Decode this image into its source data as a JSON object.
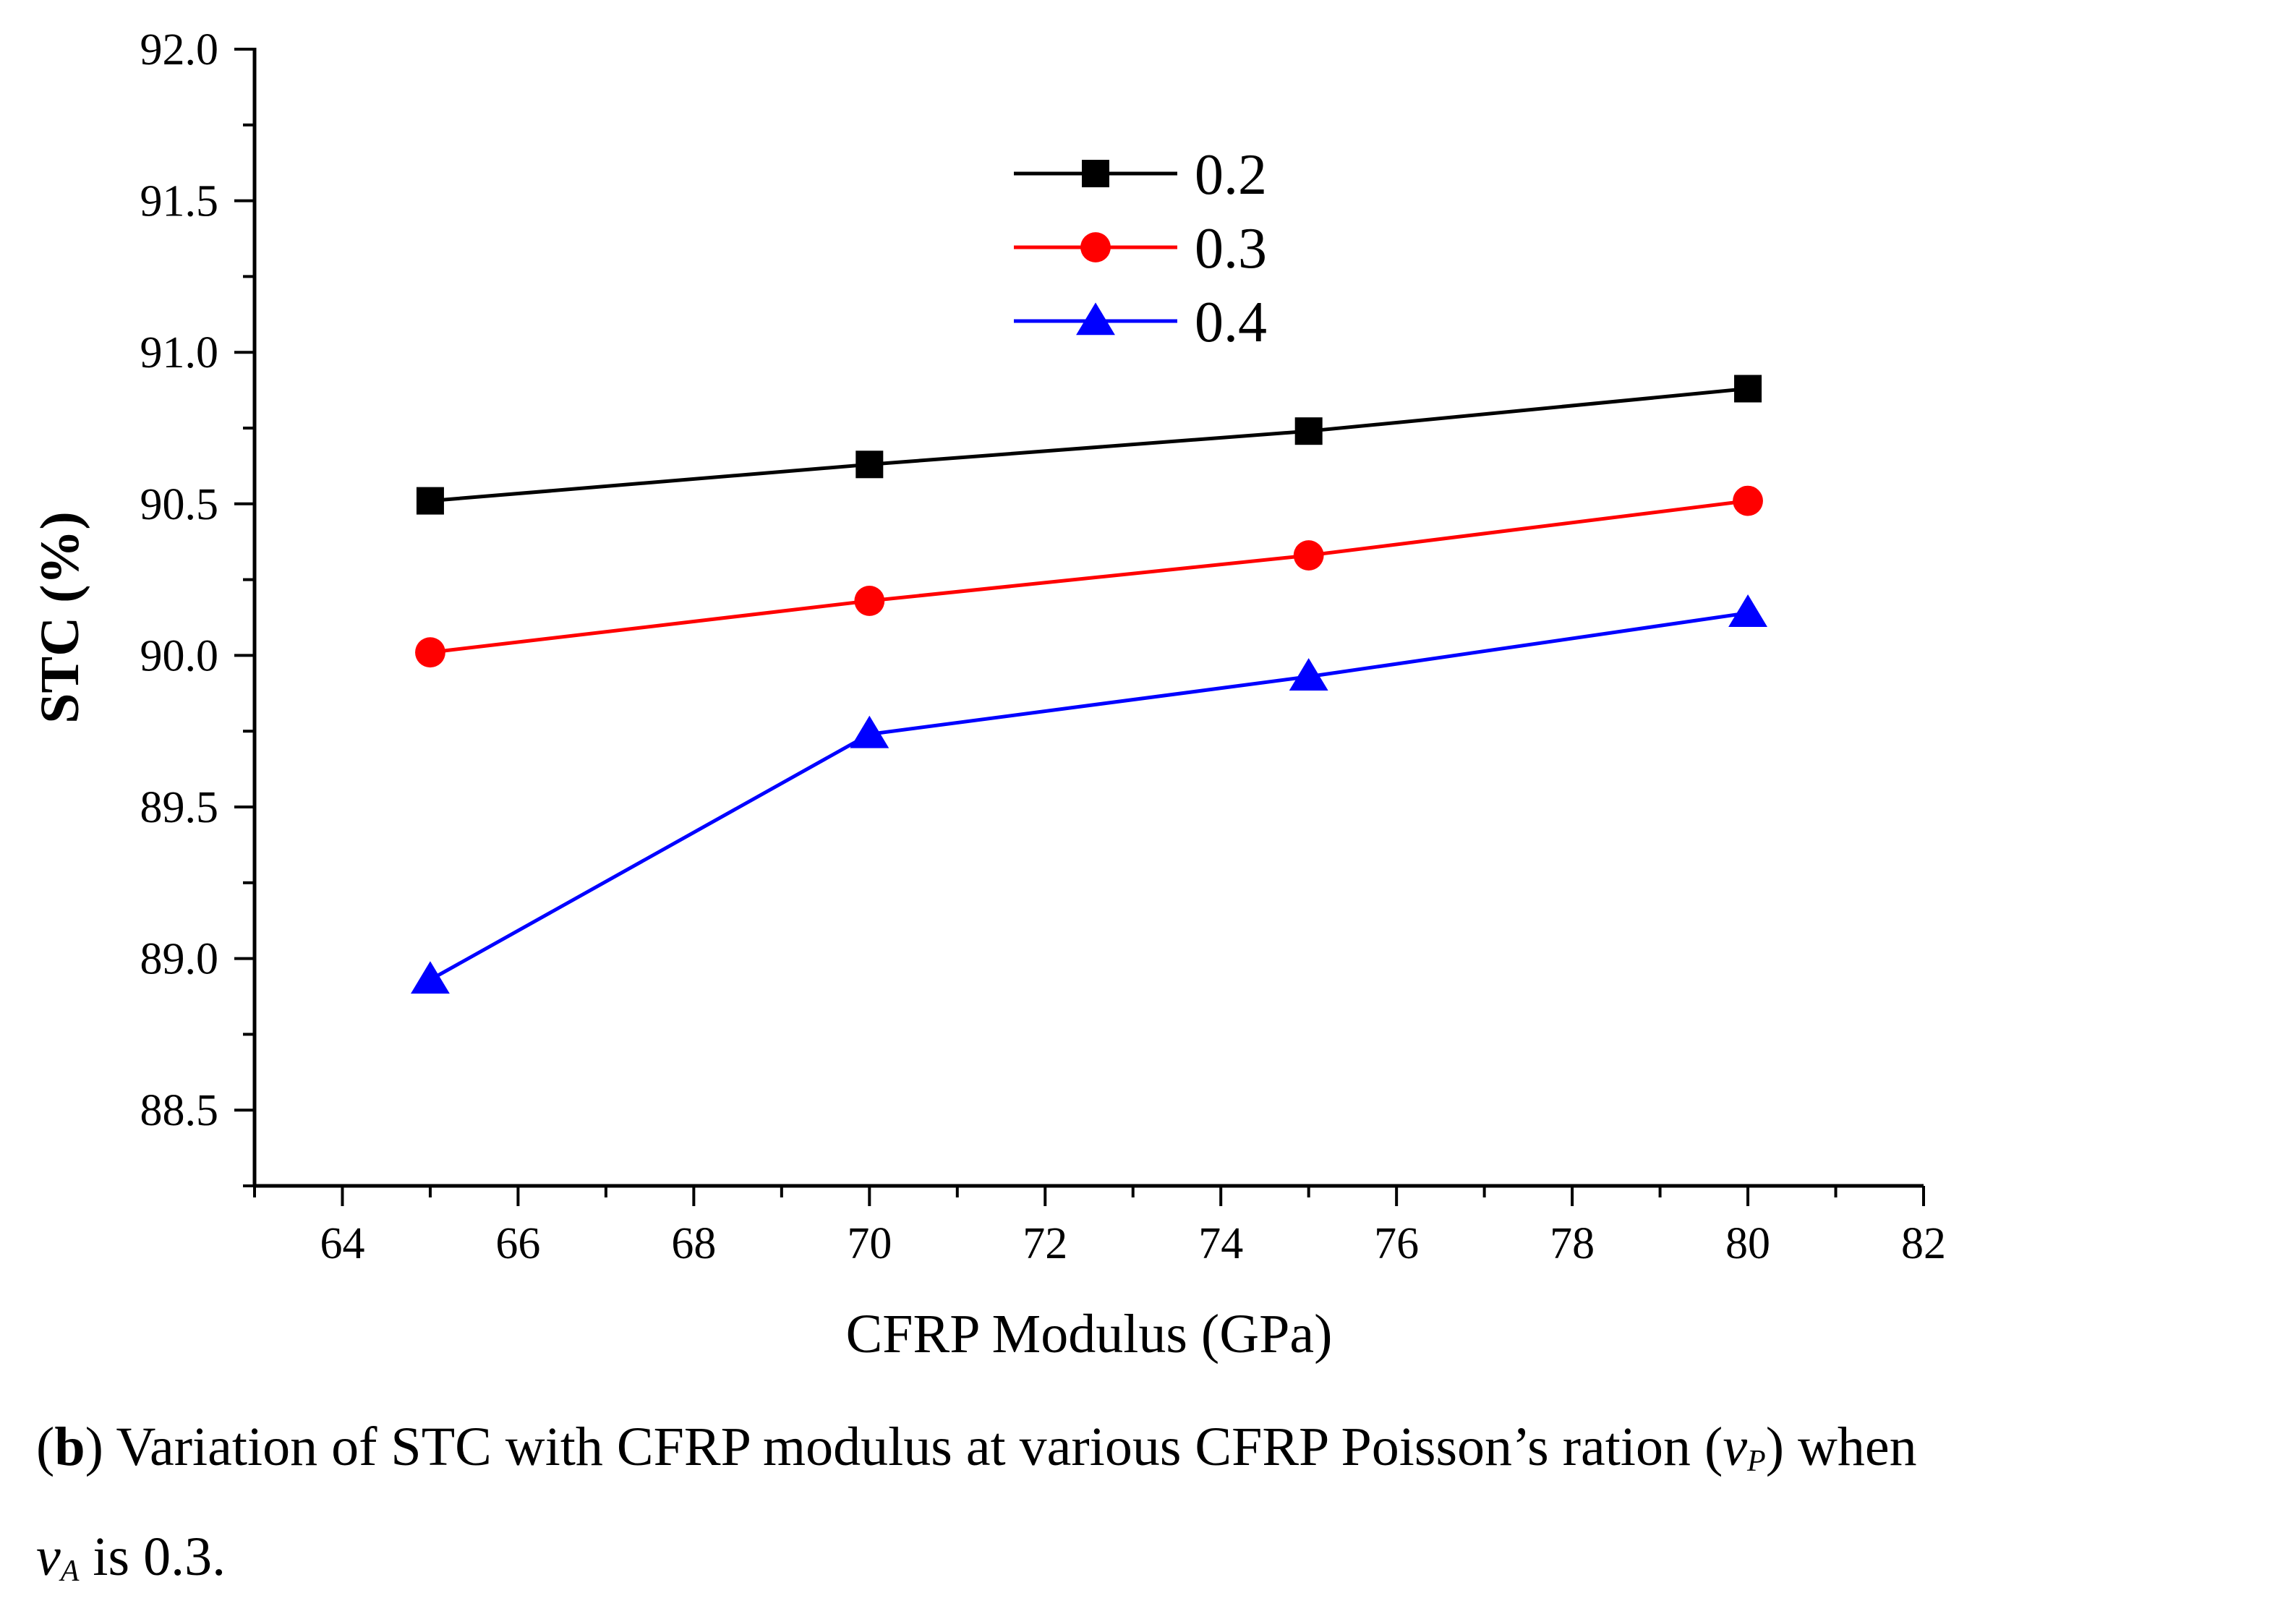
{
  "chart_data": {
    "type": "line",
    "x": [
      65,
      70,
      75,
      80
    ],
    "xlabel": "CFRP Modulus (GPa)",
    "ylabel": "STC (%)",
    "xlim": [
      63,
      82
    ],
    "ylim": [
      88.25,
      92.0
    ],
    "xticks": [
      64,
      66,
      68,
      70,
      72,
      74,
      76,
      78,
      80,
      82
    ],
    "xtick_labels": [
      "64",
      "66",
      "68",
      "70",
      "72",
      "74",
      "76",
      "78",
      "80",
      "82"
    ],
    "yticks": [
      88.5,
      89.0,
      89.5,
      90.0,
      90.5,
      91.0,
      91.5,
      92.0
    ],
    "ytick_labels": [
      "88.5",
      "89.0",
      "89.5",
      "90.0",
      "90.5",
      "91.0",
      "91.5",
      "92.0"
    ],
    "legend_position": "top-center",
    "series": [
      {
        "name": "0.2",
        "color": "#000000",
        "marker": "square",
        "values": [
          90.51,
          90.63,
          90.74,
          90.88
        ]
      },
      {
        "name": "0.3",
        "color": "#ff0000",
        "marker": "circle",
        "values": [
          90.01,
          90.18,
          90.33,
          90.51
        ]
      },
      {
        "name": "0.4",
        "color": "#0000ff",
        "marker": "triangle",
        "values": [
          88.93,
          89.74,
          89.93,
          90.14
        ]
      }
    ]
  },
  "caption": {
    "label": "b",
    "text_1": " Variation of STC with CFRP modulus at various CFRP Poisson’s ration (",
    "symbol_v": "v",
    "sub_p": "P",
    "text_2": ") when",
    "sub_a": "A",
    "text_3": " is 0.3."
  }
}
